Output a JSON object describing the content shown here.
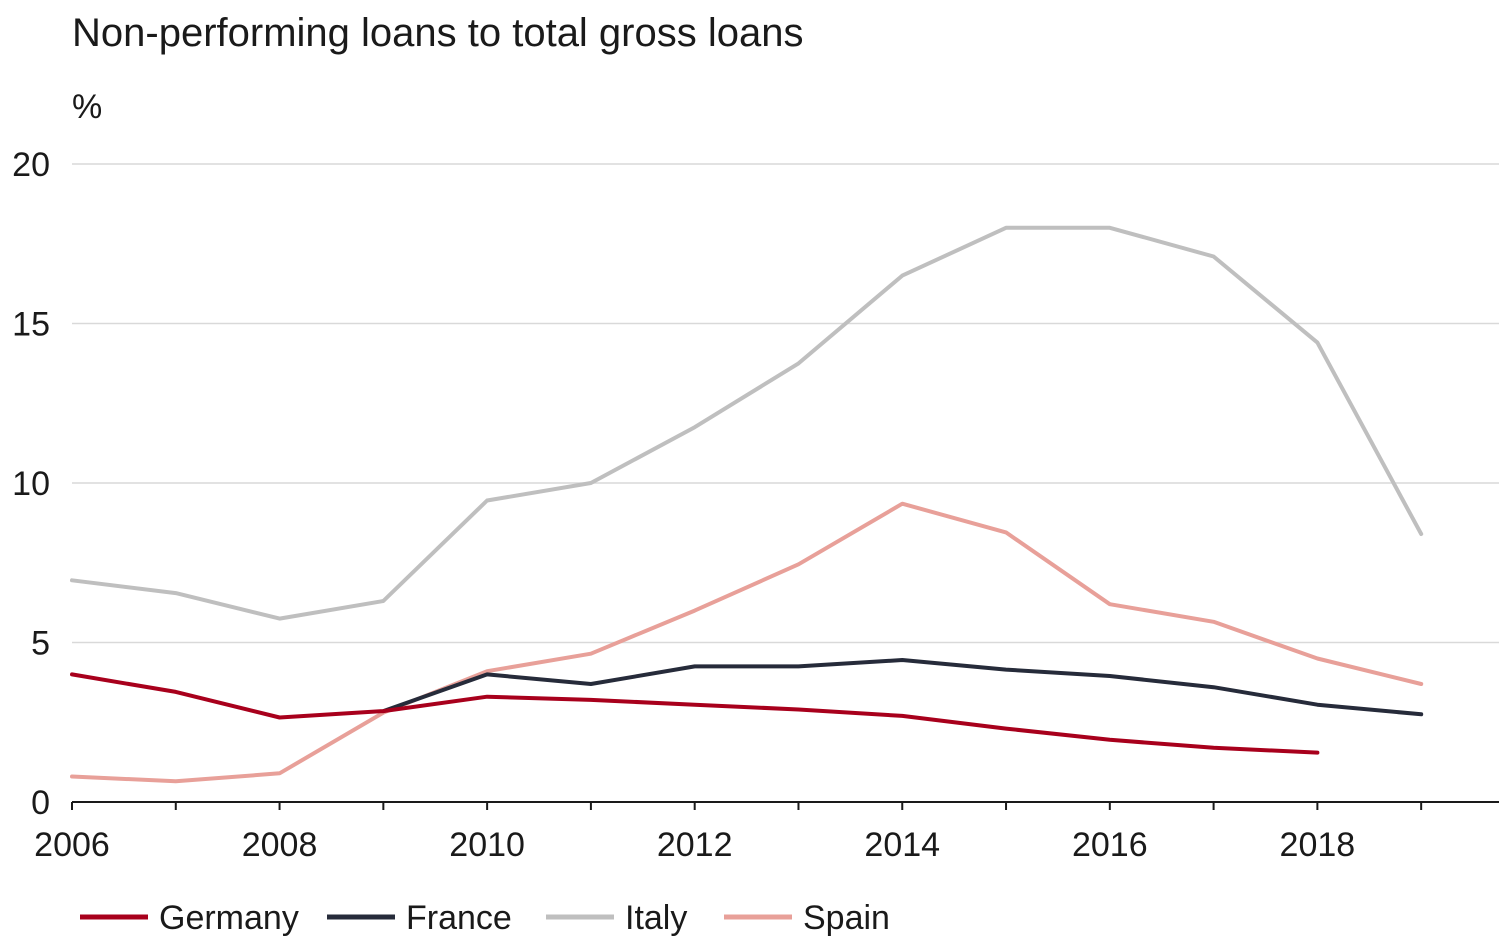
{
  "chart_data": {
    "type": "line",
    "title": "Non-performing loans to total gross loans",
    "ylabel": "%",
    "xlabel": "",
    "xlim": [
      2006,
      2019.75
    ],
    "ylim": [
      0,
      20
    ],
    "x_ticks": [
      2006,
      2008,
      2010,
      2012,
      2014,
      2016,
      2018
    ],
    "y_ticks": [
      0,
      5,
      10,
      15,
      20
    ],
    "grid": "horizontal",
    "legend_position": "bottom",
    "series": [
      {
        "name": "Germany",
        "color": "#a8001c",
        "x": [
          2006,
          2007,
          2008,
          2009,
          2010,
          2011,
          2012,
          2013,
          2014,
          2015,
          2016,
          2017,
          2018
        ],
        "values": [
          4.0,
          3.45,
          2.65,
          2.85,
          3.3,
          3.2,
          3.05,
          2.9,
          2.7,
          2.3,
          1.95,
          1.7,
          1.55
        ]
      },
      {
        "name": "France",
        "color": "#262b3a",
        "x": [
          2009,
          2010,
          2011,
          2012,
          2013,
          2014,
          2015,
          2016,
          2017,
          2018,
          2019
        ],
        "values": [
          2.85,
          4.0,
          3.7,
          4.25,
          4.25,
          4.45,
          4.15,
          3.95,
          3.6,
          3.05,
          2.75
        ]
      },
      {
        "name": "Italy",
        "color": "#bfbfbf",
        "x": [
          2006,
          2007,
          2008,
          2009,
          2010,
          2011,
          2012,
          2013,
          2014,
          2015,
          2016,
          2017,
          2018,
          2019
        ],
        "values": [
          6.95,
          6.55,
          5.75,
          6.3,
          9.45,
          10.0,
          11.75,
          13.75,
          16.5,
          18.0,
          18.0,
          17.1,
          14.4,
          8.4
        ]
      },
      {
        "name": "Spain",
        "color": "#e8a099",
        "x": [
          2006,
          2007,
          2008,
          2009,
          2010,
          2011,
          2012,
          2013,
          2014,
          2015,
          2016,
          2017,
          2018,
          2019
        ],
        "values": [
          0.8,
          0.65,
          0.9,
          2.8,
          4.1,
          4.65,
          6.0,
          7.45,
          9.35,
          8.45,
          6.2,
          5.65,
          4.5,
          3.7
        ]
      }
    ]
  }
}
